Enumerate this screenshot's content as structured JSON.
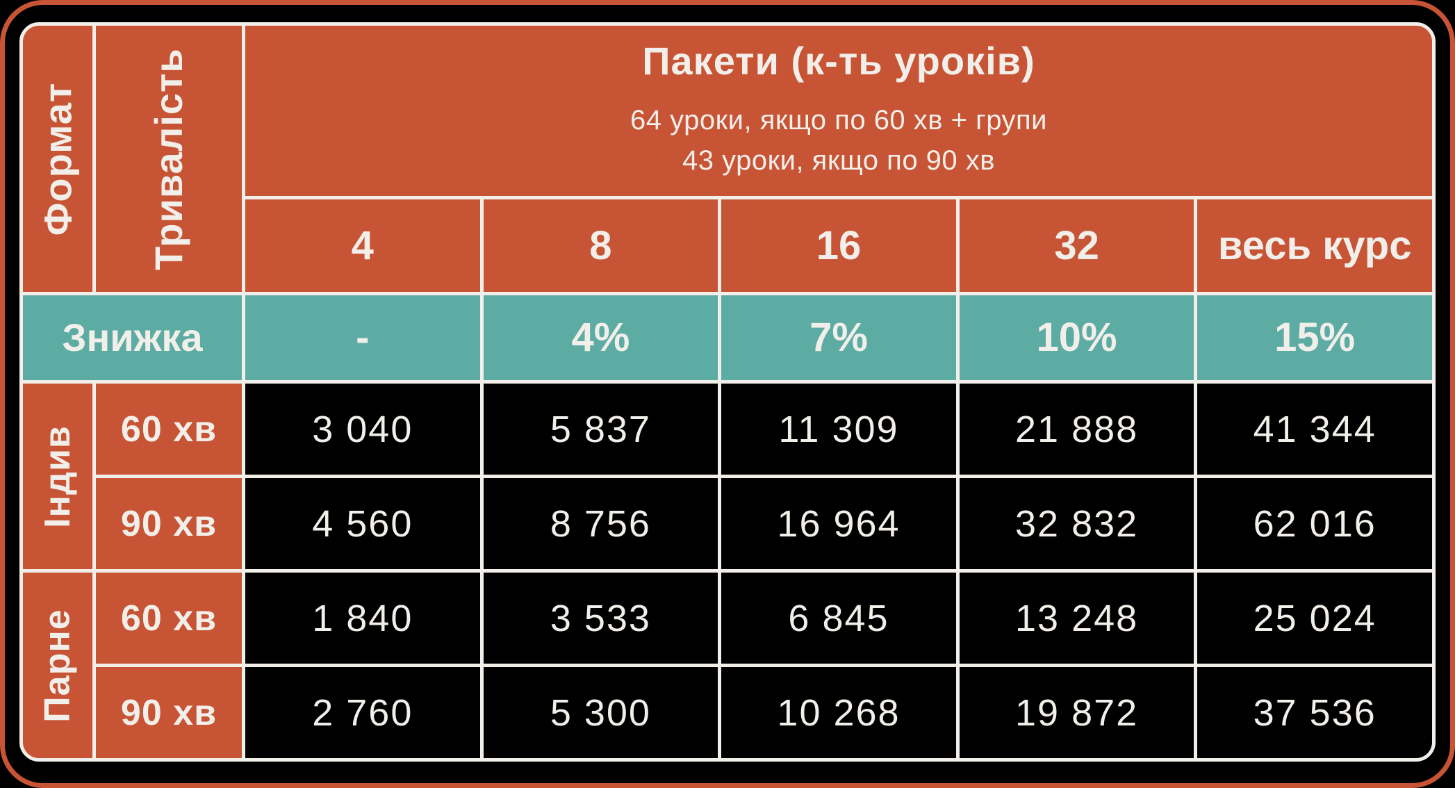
{
  "colors": {
    "orange": "#C75434",
    "teal": "#5DACA3",
    "black": "#000000",
    "off_white": "#F2EFEA"
  },
  "corner": {
    "format_label": "Формат",
    "duration_label": "Тривалість"
  },
  "header": {
    "title": "Пакети (к-ть уроків)",
    "subtitle_line1": "64 уроки, якщо по 60 хв + групи",
    "subtitle_line2": "43 уроки, якщо по 90 хв",
    "package_sizes": [
      "4",
      "8",
      "16",
      "32",
      "весь курс"
    ]
  },
  "discount_row": {
    "label": "Знижка",
    "values": [
      "-",
      "4%",
      "7%",
      "10%",
      "15%"
    ]
  },
  "groups": [
    {
      "format": "Індив",
      "rows": [
        {
          "duration": "60 хв",
          "prices": [
            "3 040",
            "5 837",
            "11 309",
            "21 888",
            "41 344"
          ]
        },
        {
          "duration": "90 хв",
          "prices": [
            "4 560",
            "8 756",
            "16 964",
            "32 832",
            "62 016"
          ]
        }
      ]
    },
    {
      "format": "Парне",
      "rows": [
        {
          "duration": "60 хв",
          "prices": [
            "1 840",
            "3 533",
            "6 845",
            "13 248",
            "25 024"
          ]
        },
        {
          "duration": "90 хв",
          "prices": [
            "2 760",
            "5 300",
            "10 268",
            "19 872",
            "37 536"
          ]
        }
      ]
    }
  ],
  "chart_data": {
    "type": "table",
    "title": "Пакети (к-ть уроків)",
    "notes": [
      "64 уроки, якщо по 60 хв + групи",
      "43 уроки, якщо по 90 хв"
    ],
    "columns": [
      "4",
      "8",
      "16",
      "32",
      "весь курс"
    ],
    "discounts": [
      "-",
      "4%",
      "7%",
      "10%",
      "15%"
    ],
    "rows": [
      {
        "format": "Індив",
        "duration": "60 хв",
        "values": [
          3040,
          5837,
          11309,
          21888,
          41344
        ]
      },
      {
        "format": "Індив",
        "duration": "90 хв",
        "values": [
          4560,
          8756,
          16964,
          32832,
          62016
        ]
      },
      {
        "format": "Парне",
        "duration": "60 хв",
        "values": [
          1840,
          3533,
          6845,
          13248,
          25024
        ]
      },
      {
        "format": "Парне",
        "duration": "90 хв",
        "values": [
          2760,
          5300,
          10268,
          19872,
          37536
        ]
      }
    ]
  }
}
